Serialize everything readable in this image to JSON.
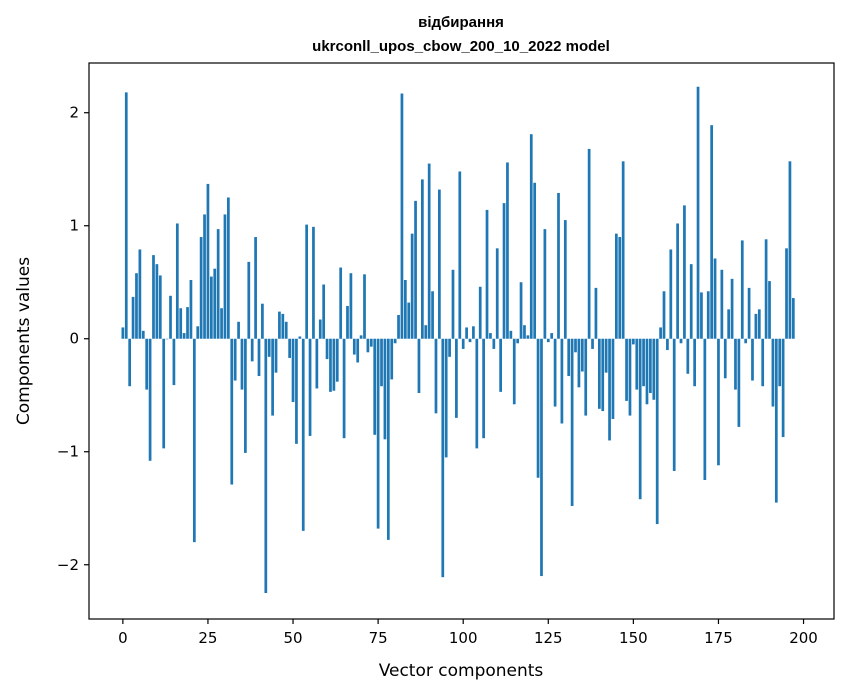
{
  "chart_data": {
    "type": "bar",
    "title": "відбирання",
    "subtitle": "ukrconll_upos_cbow_200_10_2022 model",
    "xlabel": "Vector components",
    "ylabel": "Components values",
    "xlim": [
      -9.95,
      208.95
    ],
    "ylim": [
      -2.48,
      2.44
    ],
    "xticks": [
      0,
      25,
      50,
      75,
      100,
      125,
      150,
      175,
      200
    ],
    "yticks": [
      -2,
      -1,
      0,
      1,
      2
    ],
    "ytick_labels": [
      "−2",
      "−1",
      "0",
      "1",
      "2"
    ],
    "bar_color": "#1f77b4",
    "grid": false,
    "values": [
      0.1,
      2.18,
      -0.42,
      0.37,
      0.58,
      0.79,
      0.07,
      -0.45,
      -1.08,
      0.74,
      0.66,
      0.56,
      -0.97,
      0.0,
      0.38,
      -0.41,
      1.02,
      0.27,
      0.05,
      0.28,
      0.52,
      -1.8,
      0.11,
      0.9,
      1.1,
      1.37,
      0.55,
      0.62,
      0.97,
      0.27,
      1.1,
      1.25,
      -1.29,
      -0.37,
      0.15,
      -0.45,
      -1.01,
      0.68,
      -0.2,
      0.9,
      -0.33,
      0.31,
      -2.25,
      -0.16,
      -0.68,
      -0.3,
      0.24,
      0.22,
      0.15,
      -0.17,
      -0.56,
      -0.93,
      0.02,
      -1.7,
      1.01,
      -0.86,
      0.99,
      -0.44,
      0.17,
      0.48,
      -0.18,
      -0.47,
      -0.46,
      -0.38,
      0.63,
      -0.88,
      0.29,
      0.58,
      -0.14,
      -0.21,
      0.03,
      0.57,
      -0.12,
      -0.07,
      -0.85,
      -1.68,
      -0.42,
      -0.89,
      -1.78,
      -0.36,
      -0.04,
      0.21,
      2.17,
      0.52,
      0.32,
      0.93,
      1.22,
      -0.48,
      1.41,
      0.12,
      1.55,
      0.42,
      -0.66,
      1.32,
      -2.11,
      -1.05,
      -0.16,
      0.61,
      -0.7,
      1.48,
      -0.09,
      0.1,
      -0.03,
      0.11,
      -0.97,
      0.46,
      -0.88,
      1.14,
      0.05,
      -0.09,
      0.8,
      -0.47,
      1.2,
      1.56,
      0.07,
      -0.58,
      -0.04,
      0.5,
      0.12,
      0.03,
      1.81,
      1.38,
      -1.23,
      -2.1,
      0.97,
      -0.03,
      0.05,
      -0.6,
      1.29,
      -0.75,
      1.05,
      -0.33,
      -1.48,
      -0.12,
      -0.43,
      -0.29,
      -0.68,
      1.68,
      -0.09,
      0.45,
      -0.62,
      -0.64,
      -0.3,
      -0.9,
      -0.71,
      0.93,
      0.9,
      1.57,
      -0.55,
      -0.68,
      -0.05,
      -0.45,
      -1.42,
      -0.42,
      -0.58,
      -0.48,
      -0.54,
      -1.64,
      0.1,
      0.42,
      -0.1,
      0.79,
      -1.17,
      1.02,
      -0.04,
      1.18,
      -0.31,
      0.66,
      -0.42,
      2.23,
      0.41,
      -1.25,
      0.42,
      1.89,
      0.71,
      -1.12,
      0.61,
      -0.35,
      0.26,
      0.53,
      -0.45,
      -0.78,
      0.87,
      -0.04,
      0.45,
      -0.37,
      0.22,
      0.26,
      -0.42,
      0.88,
      0.51,
      -0.6,
      -1.45,
      -0.42,
      -0.87,
      0.8,
      1.57,
      0.36
    ]
  }
}
